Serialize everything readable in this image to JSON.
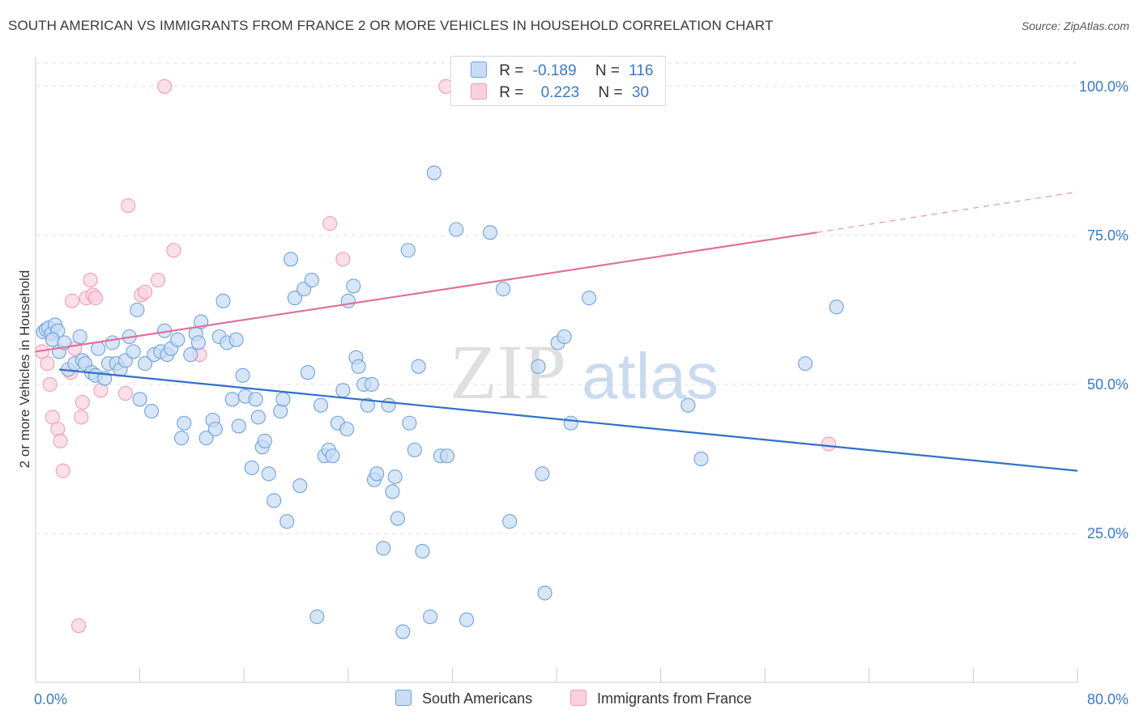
{
  "title": "SOUTH AMERICAN VS IMMIGRANTS FROM FRANCE 2 OR MORE VEHICLES IN HOUSEHOLD CORRELATION CHART",
  "source": "Source: ZipAtlas.com",
  "watermark": {
    "zip": "ZIP",
    "atlas": "atlas"
  },
  "legend": {
    "rows": [
      {
        "r_label": "R =",
        "r_value": "-0.189",
        "n_label": "N =",
        "n_value": "116",
        "color": "#6fa0e0"
      },
      {
        "r_label": "R =",
        "r_value": "0.223",
        "n_label": "N =",
        "n_value": "30",
        "color": "#f29ab7"
      }
    ]
  },
  "bottom_legend": [
    {
      "label": "South Americans",
      "color": "#6fa0e0"
    },
    {
      "label": "Immigrants from France",
      "color": "#f29ab7"
    }
  ],
  "chart_data": {
    "type": "scatter",
    "title": "SOUTH AMERICAN VS IMMIGRANTS FROM FRANCE 2 OR MORE VEHICLES IN HOUSEHOLD CORRELATION CHART",
    "xlabel": "",
    "ylabel": "2 or more Vehicles in Household",
    "xlim": [
      0,
      80
    ],
    "ylim": [
      0,
      105
    ],
    "x_tick_labels": [
      {
        "value": 0,
        "label": "0.0%"
      },
      {
        "value": 80,
        "label": "80.0%"
      }
    ],
    "y_tick_labels": [
      {
        "value": 25,
        "label": "25.0%"
      },
      {
        "value": 50,
        "label": "50.0%"
      },
      {
        "value": 75,
        "label": "75.0%"
      },
      {
        "value": 100,
        "label": "100.0%"
      }
    ],
    "grid": true,
    "legend_position": "top-center",
    "series": [
      {
        "name": "South Americans",
        "color": "#6fa0e0",
        "trend": {
          "x0": 1.8,
          "y0": 52.5,
          "x1": 80,
          "y1": 35.5
        },
        "points": [
          [
            0.6,
            58.8
          ],
          [
            0.8,
            59.2
          ],
          [
            1.0,
            59.5
          ],
          [
            1.2,
            58.5
          ],
          [
            1.5,
            60.0
          ],
          [
            1.7,
            59.0
          ],
          [
            1.3,
            57.5
          ],
          [
            1.8,
            55.5
          ],
          [
            2.2,
            57.0
          ],
          [
            2.5,
            52.5
          ],
          [
            3.0,
            53.5
          ],
          [
            3.4,
            58.0
          ],
          [
            3.6,
            54.0
          ],
          [
            3.8,
            53.5
          ],
          [
            4.3,
            52.0
          ],
          [
            4.6,
            51.5
          ],
          [
            4.8,
            56.0
          ],
          [
            5.3,
            51.0
          ],
          [
            5.6,
            53.5
          ],
          [
            5.9,
            57.0
          ],
          [
            6.2,
            53.5
          ],
          [
            6.5,
            52.5
          ],
          [
            6.9,
            54.0
          ],
          [
            7.2,
            58.0
          ],
          [
            7.5,
            55.5
          ],
          [
            7.8,
            62.5
          ],
          [
            8.0,
            47.5
          ],
          [
            8.4,
            53.5
          ],
          [
            8.9,
            45.5
          ],
          [
            9.1,
            55.0
          ],
          [
            9.6,
            55.5
          ],
          [
            9.9,
            59.0
          ],
          [
            10.1,
            55.0
          ],
          [
            10.4,
            56.0
          ],
          [
            10.9,
            57.5
          ],
          [
            11.2,
            41.0
          ],
          [
            11.4,
            43.5
          ],
          [
            11.9,
            55.0
          ],
          [
            12.3,
            58.5
          ],
          [
            12.5,
            57.0
          ],
          [
            12.7,
            60.5
          ],
          [
            13.1,
            41.0
          ],
          [
            13.6,
            44.0
          ],
          [
            13.8,
            42.5
          ],
          [
            14.1,
            58.0
          ],
          [
            14.4,
            64.0
          ],
          [
            14.7,
            57.0
          ],
          [
            15.1,
            47.5
          ],
          [
            15.4,
            57.5
          ],
          [
            15.6,
            43.0
          ],
          [
            15.9,
            51.5
          ],
          [
            16.1,
            48.0
          ],
          [
            16.6,
            36.0
          ],
          [
            16.9,
            47.5
          ],
          [
            17.1,
            44.5
          ],
          [
            17.4,
            39.5
          ],
          [
            17.6,
            40.5
          ],
          [
            17.9,
            35.0
          ],
          [
            18.3,
            30.5
          ],
          [
            18.8,
            45.5
          ],
          [
            19.0,
            47.5
          ],
          [
            19.3,
            27.0
          ],
          [
            19.6,
            71.0
          ],
          [
            19.9,
            64.5
          ],
          [
            20.3,
            33.0
          ],
          [
            20.6,
            66.0
          ],
          [
            20.9,
            52.0
          ],
          [
            21.2,
            67.5
          ],
          [
            21.6,
            11.0
          ],
          [
            21.9,
            46.5
          ],
          [
            22.2,
            38.0
          ],
          [
            22.5,
            39.0
          ],
          [
            22.8,
            38.0
          ],
          [
            23.2,
            43.5
          ],
          [
            23.6,
            49.0
          ],
          [
            23.9,
            42.5
          ],
          [
            24.0,
            64.0
          ],
          [
            24.4,
            66.5
          ],
          [
            24.6,
            54.5
          ],
          [
            24.8,
            53.0
          ],
          [
            25.2,
            50.0
          ],
          [
            25.5,
            46.5
          ],
          [
            25.8,
            50.0
          ],
          [
            26.0,
            34.0
          ],
          [
            26.2,
            35.0
          ],
          [
            26.7,
            22.5
          ],
          [
            27.1,
            46.5
          ],
          [
            27.4,
            32.0
          ],
          [
            27.6,
            34.5
          ],
          [
            27.8,
            27.5
          ],
          [
            28.2,
            8.5
          ],
          [
            28.6,
            72.5
          ],
          [
            28.7,
            43.5
          ],
          [
            29.1,
            39.0
          ],
          [
            29.4,
            53.0
          ],
          [
            29.7,
            22.0
          ],
          [
            30.3,
            11.0
          ],
          [
            30.6,
            85.5
          ],
          [
            31.1,
            38.0
          ],
          [
            31.6,
            38.0
          ],
          [
            32.3,
            76.0
          ],
          [
            33.1,
            10.5
          ],
          [
            34.9,
            75.5
          ],
          [
            35.9,
            66.0
          ],
          [
            36.4,
            27.0
          ],
          [
            38.6,
            53.0
          ],
          [
            38.9,
            35.0
          ],
          [
            39.1,
            15.0
          ],
          [
            40.1,
            57.0
          ],
          [
            40.6,
            58.0
          ],
          [
            41.1,
            43.5
          ],
          [
            42.5,
            64.5
          ],
          [
            50.1,
            46.5
          ],
          [
            51.1,
            37.5
          ],
          [
            59.1,
            53.5
          ],
          [
            61.5,
            63.0
          ]
        ]
      },
      {
        "name": "Immigrants from France",
        "color": "#f29ab7",
        "trend": {
          "x0": 0,
          "y0": 55.5,
          "x1": 60,
          "y1": 75.5,
          "dash_to_x": 80,
          "dash_to_y": 82.3
        },
        "points": [
          [
            0.5,
            55.5
          ],
          [
            0.9,
            53.5
          ],
          [
            1.1,
            50.0
          ],
          [
            1.3,
            44.5
          ],
          [
            1.7,
            42.5
          ],
          [
            1.9,
            40.5
          ],
          [
            2.1,
            35.5
          ],
          [
            2.7,
            52.0
          ],
          [
            2.8,
            64.0
          ],
          [
            3.0,
            56.0
          ],
          [
            3.3,
            9.5
          ],
          [
            3.5,
            44.5
          ],
          [
            3.6,
            47.0
          ],
          [
            3.9,
            64.5
          ],
          [
            4.2,
            67.5
          ],
          [
            4.4,
            65.0
          ],
          [
            4.6,
            64.5
          ],
          [
            5.0,
            49.0
          ],
          [
            6.9,
            48.5
          ],
          [
            7.1,
            80.0
          ],
          [
            8.1,
            65.0
          ],
          [
            8.4,
            65.5
          ],
          [
            9.4,
            67.5
          ],
          [
            9.9,
            100.0
          ],
          [
            10.6,
            72.5
          ],
          [
            12.6,
            55.0
          ],
          [
            22.6,
            77.0
          ],
          [
            23.6,
            71.0
          ],
          [
            31.5,
            100.0
          ],
          [
            60.9,
            40.0
          ]
        ]
      }
    ]
  }
}
